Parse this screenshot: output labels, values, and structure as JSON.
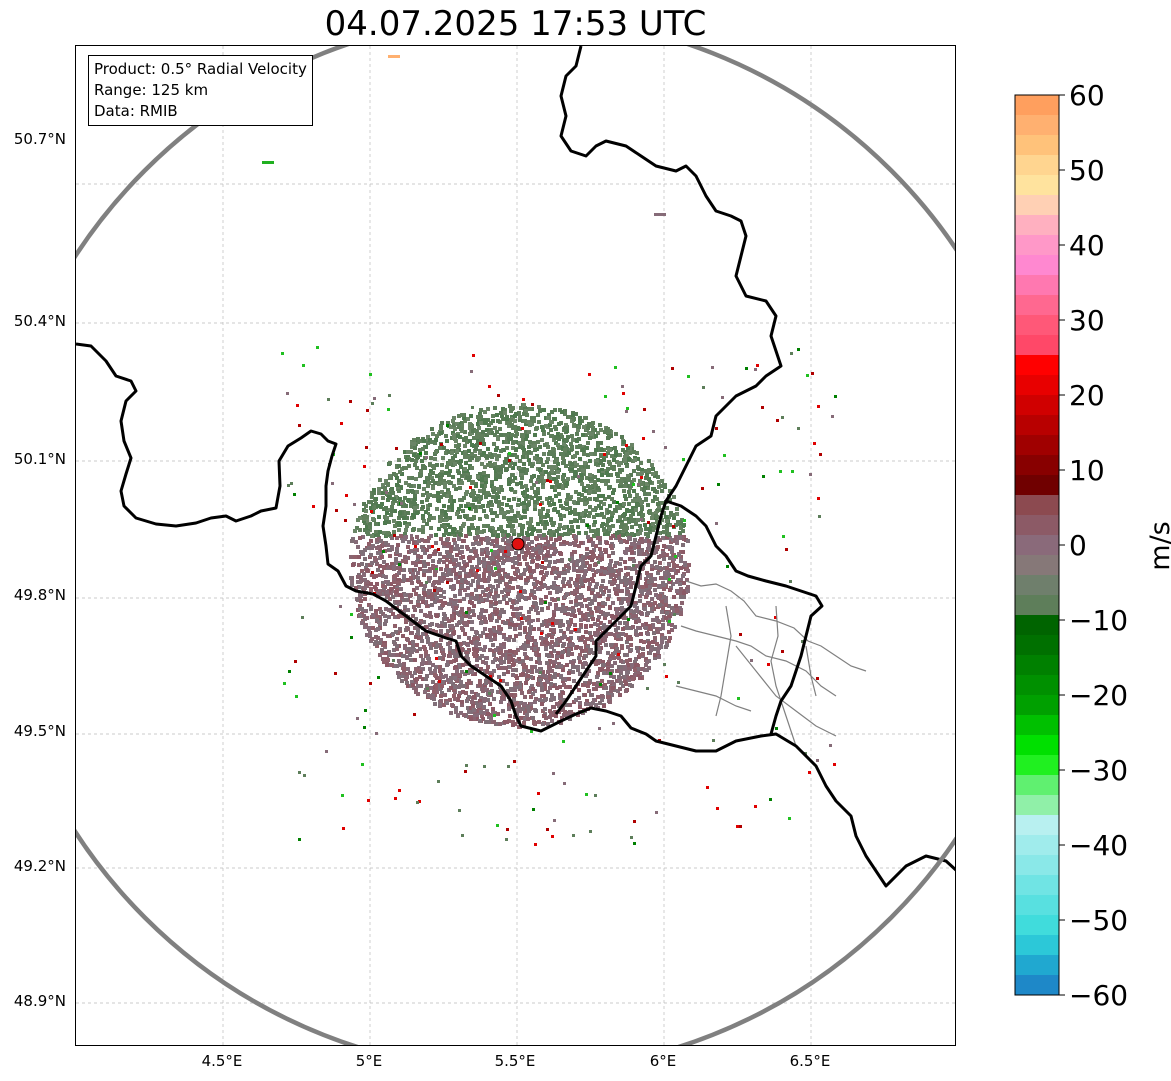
{
  "title": "04.07.2025 17:53 UTC",
  "info": {
    "product": "Product: 0.5° Radial Velocity",
    "range": "Range: 125 km",
    "source": "Data: RMIB"
  },
  "axes": {
    "lat_ticks": [
      "50.7°N",
      "50.4°N",
      "50.1°N",
      "49.8°N",
      "49.5°N",
      "49.2°N",
      "48.9°N"
    ],
    "lon_ticks": [
      "4.5°E",
      "5°E",
      "5.5°E",
      "6°E",
      "6.5°E"
    ]
  },
  "colorbar": {
    "unit": "m/s",
    "tick_labels": [
      "60",
      "50",
      "40",
      "30",
      "20",
      "10",
      "0",
      "−10",
      "−20",
      "−30",
      "−40",
      "−50",
      "−60"
    ],
    "range": [
      -60,
      60
    ],
    "colors_top_to_bottom": [
      "#ff9f5e",
      "#ffb070",
      "#ffc27a",
      "#ffd590",
      "#ffe39e",
      "#ffd0b4",
      "#ffb0c0",
      "#ff98c8",
      "#ff88d0",
      "#ff78b0",
      "#ff6890",
      "#ff5878",
      "#ff4868",
      "#ff0000",
      "#e80000",
      "#d00000",
      "#b80000",
      "#a00000",
      "#880000",
      "#700000",
      "#8c4a50",
      "#8c5a66",
      "#8a6a7a",
      "#867878",
      "#6f7f6c",
      "#5e7e5a",
      "#006400",
      "#007000",
      "#008000",
      "#009000",
      "#00a000",
      "#00c000",
      "#00e000",
      "#20f020",
      "#60f070",
      "#90f0a8",
      "#b8f0f0",
      "#a0ecec",
      "#8ae8e8",
      "#70e4e4",
      "#58e0e0",
      "#40dcdc",
      "#2cc8d8",
      "#20a8d0",
      "#1e88c8"
    ]
  },
  "radar": {
    "site_marker": "red-dot",
    "range_ring_color": "#808080",
    "border_color": "#000000"
  }
}
